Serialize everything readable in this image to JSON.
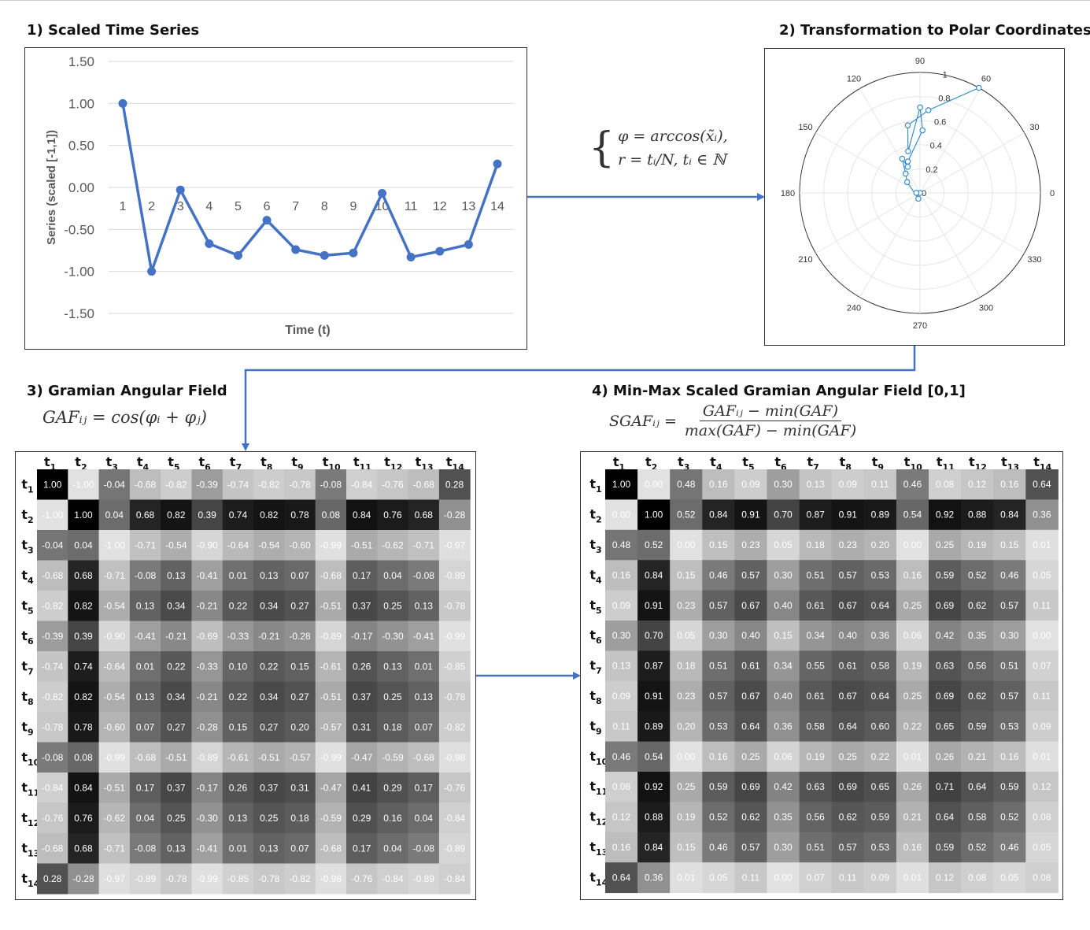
{
  "panels": {
    "p1": {
      "title": "1) Scaled Time Series"
    },
    "p2": {
      "title": "2) Transformation to Polar Coordinates"
    },
    "p3": {
      "title": "3) Gramian Angular Field",
      "formula": "GAFᵢⱼ = cos(φᵢ + φⱼ)"
    },
    "p4": {
      "title": "4) Min-Max Scaled Gramian Angular Field [0,1]",
      "formula_lhs": "SGAFᵢⱼ =",
      "formula_num": "GAFᵢⱼ − min(GAF)",
      "formula_den": "max(GAF) − min(GAF)"
    }
  },
  "transform": {
    "line1": "φ = arccos(x̃ᵢ),",
    "line2": "r = tᵢ/N,    tᵢ ∈ ℕ"
  },
  "colors": {
    "series": "#4472c4",
    "polar": "#3a8ec8",
    "arrow": "#4472c4"
  },
  "chart_data": [
    {
      "type": "line",
      "title": "1) Scaled Time Series",
      "xlabel": "Time (t)",
      "ylabel": "Series  (scaled [-1,1])",
      "x": [
        1,
        2,
        3,
        4,
        5,
        6,
        7,
        8,
        9,
        10,
        11,
        12,
        13,
        14
      ],
      "values": [
        1.0,
        -1.0,
        -0.03,
        -0.67,
        -0.81,
        -0.39,
        -0.74,
        -0.81,
        -0.78,
        -0.07,
        -0.83,
        -0.76,
        -0.68,
        0.28
      ],
      "ylim": [
        -1.5,
        1.5
      ],
      "yticks": [
        "1.50",
        "1.00",
        "0.50",
        "0.00",
        "-0.50",
        "-1.00",
        "-1.50"
      ],
      "grid": true
    },
    {
      "type": "polar",
      "angle_ticks": [
        "0",
        "30",
        "60",
        "90",
        "120",
        "150",
        "180",
        "210",
        "240",
        "270",
        "300",
        "330"
      ],
      "radius_ticks": [
        "0",
        "0.2",
        "0.4",
        "0.6",
        "0.8",
        "1"
      ],
      "points": [
        [
          0,
          0
        ],
        [
          0.03,
          3.12
        ],
        [
          0.05,
          4.43
        ],
        [
          0.14,
          2.44
        ],
        [
          0.2,
          2.21
        ],
        [
          0.32,
          2.05
        ],
        [
          0.24,
          2.01
        ],
        [
          0.28,
          1.94
        ],
        [
          0.52,
          1.53
        ],
        [
          0.71,
          1.57
        ],
        [
          0.36,
          1.85
        ],
        [
          0.57,
          1.75
        ],
        [
          0.69,
          1.47
        ],
        [
          1.0,
          1.06
        ]
      ]
    },
    {
      "type": "heatmap",
      "title": "3) Gramian Angular Field",
      "labels": [
        "1",
        "2",
        "3",
        "4",
        "5",
        "6",
        "7",
        "8",
        "9",
        "10",
        "11",
        "12",
        "13",
        "14"
      ],
      "min": -1,
      "max": 1,
      "values": [
        [
          "1.00",
          "-1.00",
          "-0.04",
          "-0.68",
          "-0.82",
          "-0.39",
          "-0.74",
          "-0.82",
          "-0.78",
          "-0.08",
          "-0.84",
          "-0.76",
          "-0.68",
          "0.28"
        ],
        [
          "-1.00",
          "1.00",
          "0.04",
          "0.68",
          "0.82",
          "0.39",
          "0.74",
          "0.82",
          "0.78",
          "0.08",
          "0.84",
          "0.76",
          "0.68",
          "-0.28"
        ],
        [
          "-0.04",
          "0.04",
          "-1.00",
          "-0.71",
          "-0.54",
          "-0.90",
          "-0.64",
          "-0.54",
          "-0.60",
          "-0.99",
          "-0.51",
          "-0.62",
          "-0.71",
          "-0.97"
        ],
        [
          "-0.68",
          "0.68",
          "-0.71",
          "-0.08",
          "0.13",
          "-0.41",
          "0.01",
          "0.13",
          "0.07",
          "-0.68",
          "0.17",
          "0.04",
          "-0.08",
          "-0.89"
        ],
        [
          "-0.82",
          "0.82",
          "-0.54",
          "0.13",
          "0.34",
          "-0.21",
          "0.22",
          "0.34",
          "0.27",
          "-0.51",
          "0.37",
          "0.25",
          "0.13",
          "-0.78"
        ],
        [
          "-0.39",
          "0.39",
          "-0.90",
          "-0.41",
          "-0.21",
          "-0.69",
          "-0.33",
          "-0.21",
          "-0.28",
          "-0.89",
          "-0.17",
          "-0.30",
          "-0.41",
          "-0.99"
        ],
        [
          "-0.74",
          "0.74",
          "-0.64",
          "0.01",
          "0.22",
          "-0.33",
          "0.10",
          "0.22",
          "0.15",
          "-0.61",
          "0.26",
          "0.13",
          "0.01",
          "-0.85"
        ],
        [
          "-0.82",
          "0.82",
          "-0.54",
          "0.13",
          "0.34",
          "-0.21",
          "0.22",
          "0.34",
          "0.27",
          "-0.51",
          "0.37",
          "0.25",
          "0.13",
          "-0.78"
        ],
        [
          "-0.78",
          "0.78",
          "-0.60",
          "0.07",
          "0.27",
          "-0.28",
          "0.15",
          "0.27",
          "0.20",
          "-0.57",
          "0.31",
          "0.18",
          "0.07",
          "-0.82"
        ],
        [
          "-0.08",
          "0.08",
          "-0.99",
          "-0.68",
          "-0.51",
          "-0.89",
          "-0.61",
          "-0.51",
          "-0.57",
          "-0.99",
          "-0.47",
          "-0.59",
          "-0.68",
          "-0.98"
        ],
        [
          "-0.84",
          "0.84",
          "-0.51",
          "0.17",
          "0.37",
          "-0.17",
          "0.26",
          "0.37",
          "0.31",
          "-0.47",
          "0.41",
          "0.29",
          "0.17",
          "-0.76"
        ],
        [
          "-0.76",
          "0.76",
          "-0.62",
          "0.04",
          "0.25",
          "-0.30",
          "0.13",
          "0.25",
          "0.18",
          "-0.59",
          "0.29",
          "0.16",
          "0.04",
          "-0.84"
        ],
        [
          "-0.68",
          "0.68",
          "-0.71",
          "-0.08",
          "0.13",
          "-0.41",
          "0.01",
          "0.13",
          "0.07",
          "-0.68",
          "0.17",
          "0.04",
          "-0.08",
          "-0.89"
        ],
        [
          "0.28",
          "-0.28",
          "-0.97",
          "-0.89",
          "-0.78",
          "-0.99",
          "-0.85",
          "-0.78",
          "-0.82",
          "-0.98",
          "-0.76",
          "-0.84",
          "-0.89",
          "-0.84"
        ]
      ]
    },
    {
      "type": "heatmap",
      "title": "4) Min-Max Scaled Gramian Angular Field [0,1]",
      "labels": [
        "1",
        "2",
        "3",
        "4",
        "5",
        "6",
        "7",
        "8",
        "9",
        "10",
        "11",
        "12",
        "13",
        "14"
      ],
      "min": 0,
      "max": 1,
      "values": [
        [
          "1.00",
          "0.00",
          "0.48",
          "0.16",
          "0.09",
          "0.30",
          "0.13",
          "0.09",
          "0.11",
          "0.46",
          "0.08",
          "0.12",
          "0.16",
          "0.64"
        ],
        [
          "0.00",
          "1.00",
          "0.52",
          "0.84",
          "0.91",
          "0.70",
          "0.87",
          "0.91",
          "0.89",
          "0.54",
          "0.92",
          "0.88",
          "0.84",
          "0.36"
        ],
        [
          "0.48",
          "0.52",
          "0.00",
          "0.15",
          "0.23",
          "0.05",
          "0.18",
          "0.23",
          "0.20",
          "0.00",
          "0.25",
          "0.19",
          "0.15",
          "0.01"
        ],
        [
          "0.16",
          "0.84",
          "0.15",
          "0.46",
          "0.57",
          "0.30",
          "0.51",
          "0.57",
          "0.53",
          "0.16",
          "0.59",
          "0.52",
          "0.46",
          "0.05"
        ],
        [
          "0.09",
          "0.91",
          "0.23",
          "0.57",
          "0.67",
          "0.40",
          "0.61",
          "0.67",
          "0.64",
          "0.25",
          "0.69",
          "0.62",
          "0.57",
          "0.11"
        ],
        [
          "0.30",
          "0.70",
          "0.05",
          "0.30",
          "0.40",
          "0.15",
          "0.34",
          "0.40",
          "0.36",
          "0.06",
          "0.42",
          "0.35",
          "0.30",
          "0.00"
        ],
        [
          "0.13",
          "0.87",
          "0.18",
          "0.51",
          "0.61",
          "0.34",
          "0.55",
          "0.61",
          "0.58",
          "0.19",
          "0.63",
          "0.56",
          "0.51",
          "0.07"
        ],
        [
          "0.09",
          "0.91",
          "0.23",
          "0.57",
          "0.67",
          "0.40",
          "0.61",
          "0.67",
          "0.64",
          "0.25",
          "0.69",
          "0.62",
          "0.57",
          "0.11"
        ],
        [
          "0.11",
          "0.89",
          "0.20",
          "0.53",
          "0.64",
          "0.36",
          "0.58",
          "0.64",
          "0.60",
          "0.22",
          "0.65",
          "0.59",
          "0.53",
          "0.09"
        ],
        [
          "0.46",
          "0.54",
          "0.00",
          "0.16",
          "0.25",
          "0.06",
          "0.19",
          "0.25",
          "0.22",
          "0.01",
          "0.26",
          "0.21",
          "0.16",
          "0.01"
        ],
        [
          "0.08",
          "0.92",
          "0.25",
          "0.59",
          "0.69",
          "0.42",
          "0.63",
          "0.69",
          "0.65",
          "0.26",
          "0.71",
          "0.64",
          "0.59",
          "0.12"
        ],
        [
          "0.12",
          "0.88",
          "0.19",
          "0.52",
          "0.62",
          "0.35",
          "0.56",
          "0.62",
          "0.59",
          "0.21",
          "0.64",
          "0.58",
          "0.52",
          "0.08"
        ],
        [
          "0.16",
          "0.84",
          "0.15",
          "0.46",
          "0.57",
          "0.30",
          "0.51",
          "0.57",
          "0.53",
          "0.16",
          "0.59",
          "0.52",
          "0.46",
          "0.05"
        ],
        [
          "0.64",
          "0.36",
          "0.01",
          "0.05",
          "0.11",
          "0.00",
          "0.07",
          "0.11",
          "0.09",
          "0.01",
          "0.12",
          "0.08",
          "0.05",
          "0.08"
        ]
      ]
    }
  ]
}
